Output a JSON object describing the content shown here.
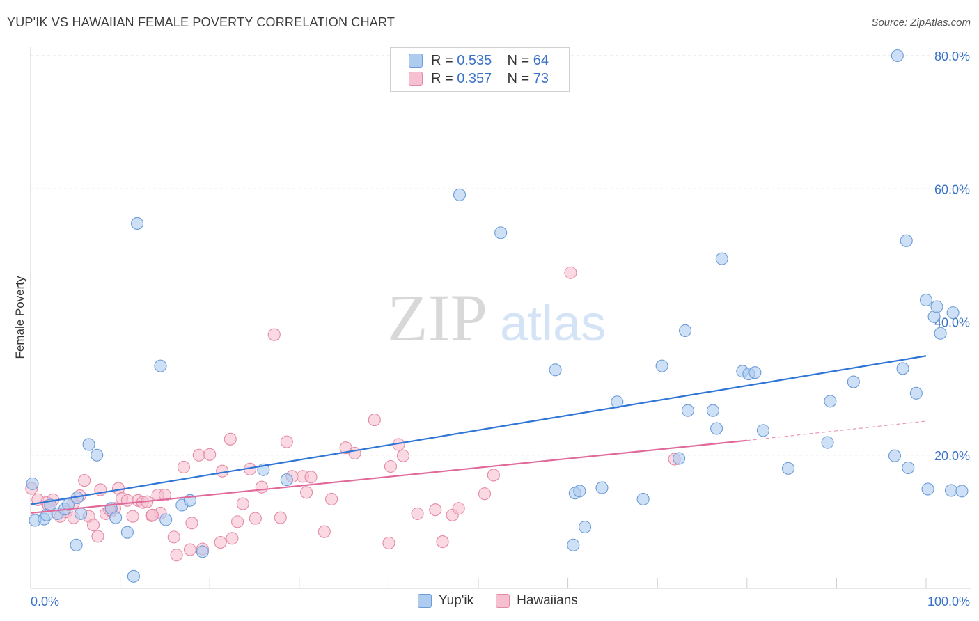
{
  "header": {
    "title": "YUP'IK VS HAWAIIAN FEMALE POVERTY CORRELATION CHART",
    "source": "Source: ZipAtlas.com"
  },
  "watermark": {
    "zip": "ZIP",
    "atlas": "atlas"
  },
  "legend": {
    "rows": [
      {
        "r_label": "R =",
        "r_value": "0.535",
        "n_label": "N =",
        "n_value": "64"
      },
      {
        "r_label": "R =",
        "r_value": "0.357",
        "n_label": "N =",
        "n_value": "73"
      }
    ]
  },
  "colors": {
    "blue_fill": "#aecbf0",
    "blue_stroke": "#6b9bd8",
    "blue_line": "#2f75d6",
    "pink_fill": "#f6c0d0",
    "pink_stroke": "#e48aa6",
    "pink_line": "#e0699a",
    "grid": "#dddddd",
    "tick_label": "#3a72c8"
  },
  "chart_data": {
    "type": "scatter",
    "title": "YUP'IK VS HAWAIIAN FEMALE POVERTY CORRELATION CHART",
    "xlabel": "",
    "ylabel": "Female Poverty",
    "xlim": [
      0,
      100
    ],
    "ylim": [
      0,
      80
    ],
    "x_tick_labels": [
      "0.0%",
      "100.0%"
    ],
    "y_ticks": [
      20,
      40,
      60,
      80
    ],
    "y_tick_labels": [
      "20.0%",
      "40.0%",
      "60.0%",
      "80.0%"
    ],
    "grid": "horizontal dashed",
    "legend_position": "top-center",
    "series": [
      {
        "name": "Yup'ik",
        "color": "#aecbf0",
        "trend": {
          "x": [
            0,
            100
          ],
          "y": [
            12.6,
            34.9
          ]
        },
        "points": [
          [
            0.2,
            15.7
          ],
          [
            0.5,
            10.2
          ],
          [
            1.5,
            10.4
          ],
          [
            1.8,
            11.0
          ],
          [
            2.2,
            12.5
          ],
          [
            3.0,
            11.2
          ],
          [
            3.8,
            11.9
          ],
          [
            4.2,
            12.6
          ],
          [
            5.2,
            13.6
          ],
          [
            5.6,
            11.2
          ],
          [
            5.1,
            6.5
          ],
          [
            6.5,
            21.6
          ],
          [
            7.4,
            20.0
          ],
          [
            9.0,
            12.0
          ],
          [
            9.5,
            10.6
          ],
          [
            10.8,
            8.4
          ],
          [
            11.5,
            1.8
          ],
          [
            11.9,
            54.8
          ],
          [
            14.5,
            33.4
          ],
          [
            15.1,
            10.3
          ],
          [
            16.9,
            12.5
          ],
          [
            17.8,
            13.2
          ],
          [
            19.2,
            5.5
          ],
          [
            26.0,
            17.8
          ],
          [
            28.6,
            16.3
          ],
          [
            47.9,
            59.1
          ],
          [
            52.5,
            53.4
          ],
          [
            58.6,
            32.8
          ],
          [
            60.6,
            6.5
          ],
          [
            60.8,
            14.3
          ],
          [
            61.3,
            14.6
          ],
          [
            61.9,
            9.2
          ],
          [
            63.8,
            15.1
          ],
          [
            65.5,
            28.0
          ],
          [
            68.4,
            13.4
          ],
          [
            70.5,
            33.4
          ],
          [
            72.4,
            19.5
          ],
          [
            73.1,
            38.7
          ],
          [
            73.4,
            26.7
          ],
          [
            76.2,
            26.7
          ],
          [
            76.6,
            24.0
          ],
          [
            77.2,
            49.5
          ],
          [
            79.5,
            32.6
          ],
          [
            80.2,
            32.2
          ],
          [
            80.9,
            32.4
          ],
          [
            81.8,
            23.7
          ],
          [
            84.6,
            18.0
          ],
          [
            89.0,
            21.9
          ],
          [
            89.3,
            28.1
          ],
          [
            91.9,
            31.0
          ],
          [
            96.5,
            19.9
          ],
          [
            97.4,
            33.0
          ],
          [
            97.8,
            52.2
          ],
          [
            98.0,
            18.1
          ],
          [
            98.9,
            29.3
          ],
          [
            100.0,
            43.3
          ],
          [
            100.2,
            14.9
          ],
          [
            100.9,
            40.8
          ],
          [
            101.2,
            42.3
          ],
          [
            101.6,
            38.3
          ],
          [
            102.8,
            14.7
          ],
          [
            103.0,
            41.4
          ],
          [
            96.8,
            80.0
          ],
          [
            104.0,
            14.6
          ]
        ]
      },
      {
        "name": "Hawaiians",
        "color": "#f6c0d0",
        "trend": {
          "x": [
            0,
            80
          ],
          "y": [
            11.3,
            22.2
          ]
        },
        "trend_extension": {
          "x": [
            80,
            100
          ],
          "y": [
            22.2,
            25.1
          ]
        },
        "points": [
          [
            0.1,
            15.0
          ],
          [
            0.8,
            13.3
          ],
          [
            1.8,
            12.9
          ],
          [
            2.5,
            13.3
          ],
          [
            3.3,
            10.8
          ],
          [
            4.0,
            11.5
          ],
          [
            4.8,
            12.8
          ],
          [
            5.5,
            13.9
          ],
          [
            6.0,
            16.2
          ],
          [
            6.5,
            10.8
          ],
          [
            7.0,
            9.5
          ],
          [
            7.5,
            7.8
          ],
          [
            7.8,
            14.8
          ],
          [
            8.4,
            11.2
          ],
          [
            9.0,
            11.6
          ],
          [
            9.4,
            12.0
          ],
          [
            9.8,
            15.0
          ],
          [
            10.2,
            13.5
          ],
          [
            10.8,
            13.2
          ],
          [
            11.4,
            10.8
          ],
          [
            12.0,
            13.2
          ],
          [
            12.5,
            12.9
          ],
          [
            13.0,
            13.0
          ],
          [
            13.5,
            10.9
          ],
          [
            14.2,
            14.0
          ],
          [
            14.5,
            11.3
          ],
          [
            15.0,
            14.0
          ],
          [
            16.0,
            7.7
          ],
          [
            16.3,
            5.0
          ],
          [
            17.1,
            18.2
          ],
          [
            17.8,
            5.8
          ],
          [
            18.0,
            9.8
          ],
          [
            18.8,
            20.0
          ],
          [
            19.2,
            5.9
          ],
          [
            20.0,
            20.1
          ],
          [
            21.2,
            6.9
          ],
          [
            21.4,
            17.6
          ],
          [
            22.3,
            22.4
          ],
          [
            23.1,
            10.0
          ],
          [
            23.7,
            12.7
          ],
          [
            24.5,
            17.9
          ],
          [
            25.1,
            10.5
          ],
          [
            25.8,
            15.2
          ],
          [
            27.2,
            38.1
          ],
          [
            27.9,
            10.6
          ],
          [
            28.6,
            22.0
          ],
          [
            29.2,
            16.8
          ],
          [
            30.4,
            16.8
          ],
          [
            30.8,
            14.4
          ],
          [
            31.3,
            16.7
          ],
          [
            32.8,
            8.5
          ],
          [
            33.6,
            13.4
          ],
          [
            35.2,
            21.1
          ],
          [
            36.2,
            20.3
          ],
          [
            38.4,
            25.3
          ],
          [
            40.0,
            6.8
          ],
          [
            40.2,
            18.3
          ],
          [
            41.1,
            21.6
          ],
          [
            41.6,
            19.9
          ],
          [
            43.2,
            11.2
          ],
          [
            45.2,
            11.8
          ],
          [
            46.0,
            7.0
          ],
          [
            47.1,
            11.0
          ],
          [
            47.8,
            12.0
          ],
          [
            50.7,
            14.2
          ],
          [
            51.7,
            17.0
          ],
          [
            60.3,
            47.4
          ],
          [
            71.9,
            19.4
          ],
          [
            22.5,
            7.5
          ],
          [
            13.6,
            11.0
          ],
          [
            4.8,
            10.6
          ],
          [
            2.0,
            12.4
          ],
          [
            8.8,
            11.8
          ]
        ]
      }
    ]
  }
}
